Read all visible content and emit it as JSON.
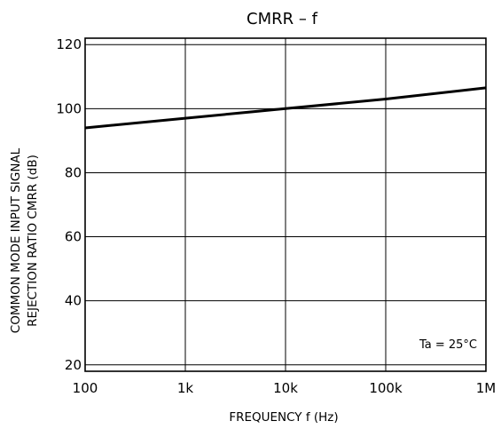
{
  "chart_data": {
    "type": "line",
    "title": "CMRR – f",
    "xlabel": "FREQUENCY f (Hz)",
    "ylabel_line1": "COMMON MODE INPUT SIGNAL",
    "ylabel_line2": "REJECTION RATIO CMRR (dB)",
    "x_scale": "log",
    "xlim": [
      100,
      1000000
    ],
    "ylim": [
      18,
      122
    ],
    "x_ticks": [
      100,
      1000,
      10000,
      100000,
      1000000
    ],
    "x_tick_labels": [
      "100",
      "1k",
      "10k",
      "100k",
      "1M"
    ],
    "y_ticks": [
      20,
      40,
      60,
      80,
      100,
      120
    ],
    "y_tick_labels": [
      "20",
      "40",
      "60",
      "80",
      "100",
      "120"
    ],
    "grid": true,
    "annotation": "Ta = 25°C",
    "series": [
      {
        "x": [
          100,
          1000,
          10000,
          100000,
          1000000
        ],
        "y": [
          94,
          97,
          100,
          103,
          106.5
        ]
      }
    ]
  }
}
